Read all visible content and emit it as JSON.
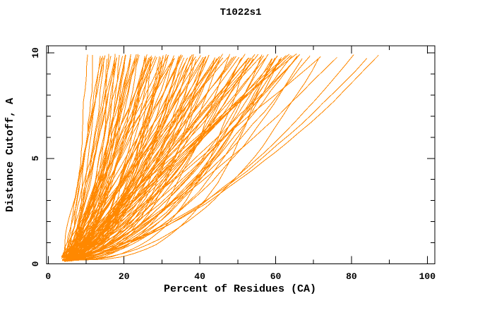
{
  "title": "T1022s1",
  "colors": {
    "curve": "#ff8800",
    "frame": "#000000",
    "background": "#ffffff",
    "text": "#000000"
  },
  "chart_data": {
    "type": "line",
    "title": "T1022s1",
    "xlabel": "Percent of Residues (CA)",
    "ylabel": "Distance Cutoff, A",
    "xlim": [
      0,
      100
    ],
    "ylim": [
      0,
      10
    ],
    "grid": false,
    "legend": "none",
    "frame": "full-box-with-inward-ticks",
    "x_major_ticks": [
      0,
      20,
      40,
      60,
      80,
      100
    ],
    "x_minor_ticks": [
      10,
      30,
      50,
      70,
      90
    ],
    "y_major_ticks": [
      0,
      5,
      10
    ],
    "y_minor_ticks": [
      1,
      2,
      3,
      4,
      6,
      7,
      8,
      9
    ],
    "x_tick_labels": [
      "0",
      "20",
      "40",
      "60",
      "80",
      "100"
    ],
    "y_tick_labels": [
      "0",
      "5",
      "10"
    ],
    "series_color": "#ff8800",
    "curve_count": 130,
    "curves_generator": {
      "comment_visual": "bundle of monotone GDT-style curves; all start near x=4-7 at cutoff ~0.1-0.4 and fan out; at cutoff ~9.8 curve endpoints span x~11 to x~87; dense mass between 14 and 66 with outliers at 77, 79.5, 84, 87",
      "top_percents": [
        11.5,
        12.6,
        13.4,
        14.0,
        14.5,
        15.0,
        15.4,
        15.8,
        16.2,
        16.6,
        17.0,
        17.4,
        17.8,
        18.2,
        18.6,
        19.0,
        19.4,
        19.8,
        20.2,
        20.6,
        21.0,
        21.4,
        21.8,
        22.2,
        22.6,
        23.0,
        23.4,
        23.8,
        24.2,
        24.6,
        25.0,
        25.4,
        25.8,
        26.2,
        26.6,
        27.0,
        27.4,
        27.8,
        28.2,
        28.6,
        29.0,
        29.4,
        29.8,
        30.2,
        30.6,
        31.0,
        31.4,
        31.8,
        32.2,
        32.6,
        33.0,
        33.4,
        33.8,
        34.2,
        34.6,
        35.0,
        35.4,
        35.8,
        36.2,
        36.6,
        37.0,
        37.4,
        37.8,
        38.2,
        38.6,
        39.0,
        39.4,
        39.8,
        40.2,
        40.6,
        41.0,
        41.5,
        42.0,
        42.5,
        43.0,
        43.5,
        44.0,
        44.5,
        45.0,
        45.5,
        46.0,
        46.5,
        47.0,
        47.5,
        48.0,
        48.5,
        49.0,
        49.5,
        50.0,
        50.5,
        51.0,
        51.5,
        52.0,
        52.5,
        53.0,
        53.5,
        54.0,
        54.5,
        55.0,
        55.5,
        56.0,
        56.5,
        57.0,
        57.5,
        58.0,
        58.5,
        59.0,
        59.5,
        60.0,
        60.5,
        61.0,
        61.5,
        62.0,
        62.5,
        63.0,
        63.5,
        64.0,
        64.5,
        65.0,
        65.5,
        66.0,
        67.0,
        68.0,
        69.5,
        71.0,
        72.0,
        77.0,
        79.5,
        84.0,
        87.0
      ],
      "start_percent_range": [
        3.5,
        6.5
      ],
      "start_cutoff_range": [
        0.1,
        0.4
      ],
      "end_cutoff_range": [
        9.68,
        9.95
      ],
      "shape_exponent_range": [
        0.32,
        1.05
      ],
      "outlier_threshold": 74,
      "outlier_exponent_range": [
        0.55,
        0.72
      ],
      "jitter": 0.55,
      "points_per_curve": 26,
      "seed": 42
    }
  }
}
